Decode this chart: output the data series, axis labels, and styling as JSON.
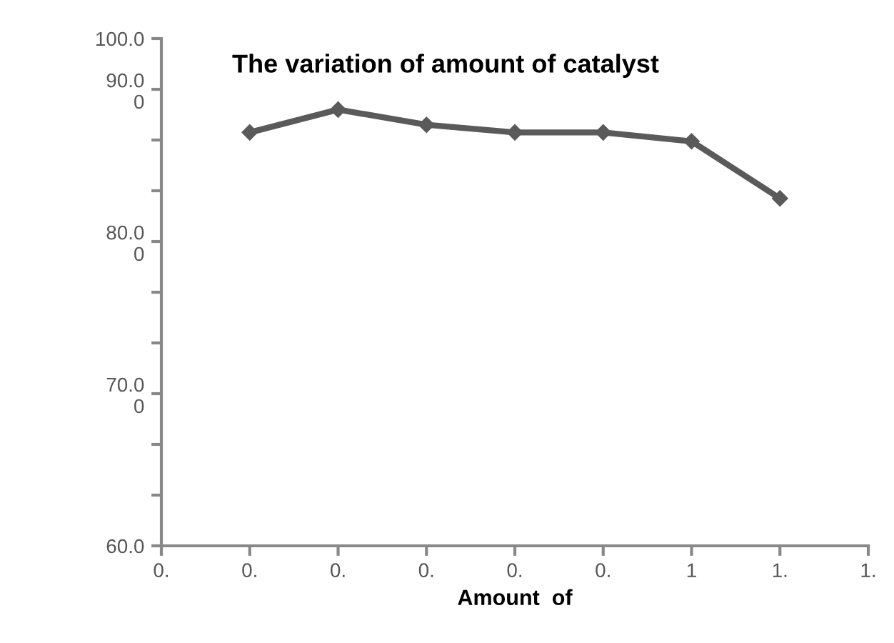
{
  "chart_data": {
    "type": "line",
    "title": "The variation of amount of catalyst",
    "xlabel": "Amount  of",
    "categories": [
      "0.",
      "0.",
      "0.",
      "0.",
      "0.",
      "0.",
      "1",
      "1.",
      "1."
    ],
    "series": [
      {
        "color": "#5a5a5a",
        "values": [
          null,
          92.6,
          94.4,
          93.2,
          92.6,
          92.6,
          91.9,
          87.4,
          null
        ]
      }
    ],
    "ylim": [
      60,
      100
    ],
    "yticks": [
      {
        "value": 60,
        "label": "60.0"
      },
      {
        "value": 64,
        "label": null
      },
      {
        "value": 68,
        "label": null
      },
      {
        "value": 72,
        "label": "70.0\n0"
      },
      {
        "value": 76,
        "label": null
      },
      {
        "value": 80,
        "label": null
      },
      {
        "value": 84,
        "label": "80.0\n0"
      },
      {
        "value": 88,
        "label": null
      },
      {
        "value": 92,
        "label": null
      },
      {
        "value": 96,
        "label": "90.0\n0"
      },
      {
        "value": 100,
        "label": "100.0"
      }
    ],
    "marker": "diamond",
    "line_style": "solid",
    "grid": false,
    "legend": false
  }
}
